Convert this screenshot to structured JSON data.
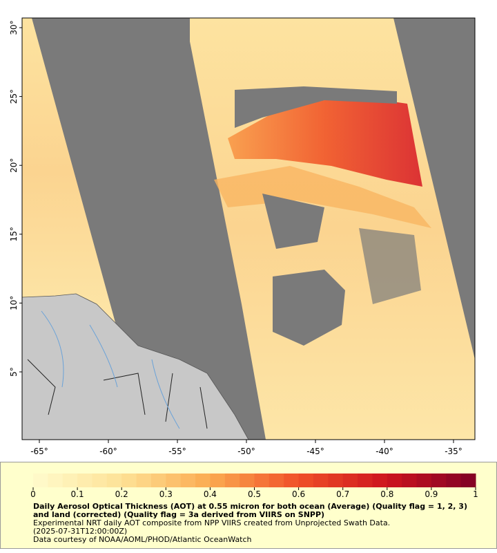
{
  "map": {
    "lat_ticks": [
      "30°",
      "25°",
      "20°",
      "15°",
      "10°",
      "5°"
    ],
    "lon_ticks": [
      "-65°",
      "-60°",
      "-55°",
      "-50°",
      "-45°",
      "-40°",
      "-35°"
    ]
  },
  "colorbar": {
    "ticks": [
      0,
      0.1,
      0.2,
      0.3,
      0.4,
      0.5,
      0.6,
      0.7,
      0.8,
      0.9,
      1
    ]
  },
  "caption": {
    "title": "Daily Aerosol Optical Thickness (AOT) at 0.55 micron for both ocean (Average) (Quality flag = 1, 2, 3) and land (corrected) (Quality flag = 3a derived from VIIRS on SNPP)",
    "lines": [
      "Experimental NRT daily AOT composite from NPP VIIRS created from Unprojected Swath Data.",
      "(2025-07-31T12:00:00Z)",
      "Data courtesy of NOAA/AOML/PHOD/Atlantic OceanWatch"
    ]
  }
}
